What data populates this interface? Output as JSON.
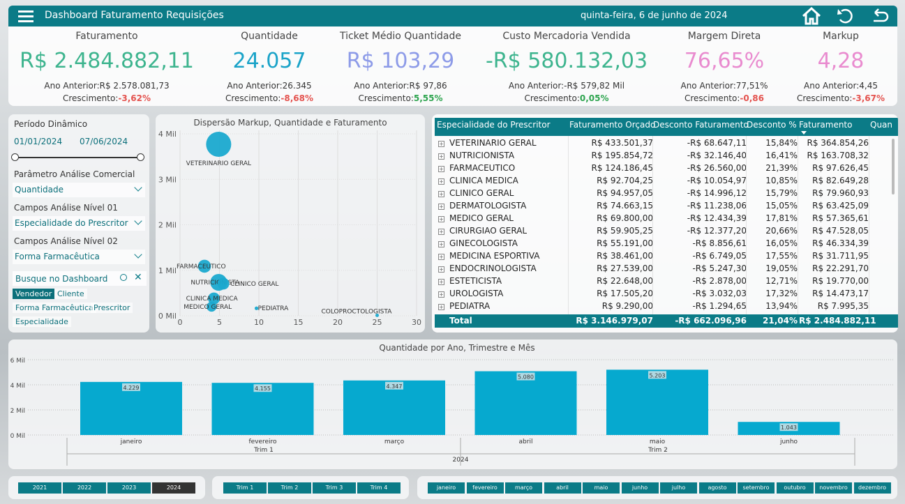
{
  "header": {
    "title": "Dashboard Faturamento Requisições",
    "date": "quinta-feira, 6 de junho de 2024"
  },
  "kpi_labels": {
    "previous": "Ano Anterior:",
    "growth": "Crescimento:"
  },
  "kpis": [
    {
      "label": "Faturamento",
      "value": "R$ 2.484.882,11",
      "previous": "R$ 2.578.081,73",
      "growth": "-3,62%",
      "value_color": "#3db48e",
      "growth_color": "#e4534f"
    },
    {
      "label": "Quantidade",
      "value": "24.057",
      "previous": "26.345",
      "growth": "-8,68%",
      "value_color": "#1aa3c8",
      "growth_color": "#e4534f"
    },
    {
      "label": "Ticket Médio Quantidade",
      "value": "R$ 103,29",
      "previous": "R$ 97,86",
      "growth": "5,55%",
      "value_color": "#8d9be8",
      "growth_color": "#2ea44f"
    },
    {
      "label": "Custo Mercadoria Vendida",
      "value": "-R$ 580.132,03",
      "previous": "-R$ 579,82 Mil",
      "growth": "0,05%",
      "value_color": "#3db48e",
      "growth_color": "#2ea44f"
    },
    {
      "label": "Margem Direta",
      "value": "76,65%",
      "previous": "77,51%",
      "growth": "-0,86",
      "value_color": "#e98bcf",
      "growth_color": "#e4534f"
    },
    {
      "label": "Markup",
      "value": "4,28",
      "previous": "4,45",
      "growth": "-3,67%",
      "value_color": "#e98bcf",
      "growth_color": "#e4534f"
    }
  ],
  "filters": {
    "period_title": "Período Dinâmico",
    "start": "01/01/2024",
    "end": "07/06/2024",
    "dropdowns": [
      {
        "label": "Parâmetro Análise Comercial",
        "value": "Quantidade"
      },
      {
        "label": "Campos Análise Nível 01",
        "value": "Especialidade do Prescritor"
      },
      {
        "label": "Campos Análise Nível 02",
        "value": "Forma Farmacêutica"
      }
    ],
    "search": "Busque no Dashboard",
    "chips": [
      "Vendedor",
      "Cliente",
      "Forma Farmacêutica",
      "Prescritor",
      "Especialidade"
    ]
  },
  "scatter": {
    "type": "scatter",
    "title": "Dispersão Markup, Quantidade e Faturamento",
    "color": "#1aa9cf",
    "labels": [
      "VETERINARIO GERAL",
      "FARMACEUTICO",
      "NUTRICIONISTA",
      "CLINICO GERAL",
      "CLINICA MEDICA",
      "MEDICO GERAL",
      "PEDIATRA",
      "COLOPROCTOLOGISTA"
    ],
    "x": [
      4.9,
      3.1,
      4.9,
      5.5,
      4.3,
      4.0,
      9.7,
      25
    ],
    "y": [
      3770,
      1090,
      735,
      705,
      380,
      200,
      165,
      10
    ],
    "sizes": [
      364854.26,
      97626.45,
      163708.32,
      79960.93,
      82649.28,
      57365.61,
      7995.35,
      2000
    ],
    "xlim": [
      0,
      30
    ],
    "xticks": [
      0,
      5,
      10,
      15,
      20,
      25,
      30
    ],
    "ylim": [
      0,
      4000
    ],
    "yticks": [
      {
        "value": 0,
        "label": "0 Mil"
      },
      {
        "value": 1000,
        "label": "1 Mil"
      },
      {
        "value": 2000,
        "label": "2 Mil"
      },
      {
        "value": 3000,
        "label": "3 Mil"
      },
      {
        "value": 4000,
        "label": "4 Mil"
      }
    ]
  },
  "table": {
    "columns": [
      "Especialidade do Prescritor",
      "Faturamento Orçado",
      "Desconto Faturamento",
      "Desconto %",
      "Faturamento",
      "Quan"
    ],
    "rows": [
      [
        "VETERINARIO GERAL",
        "R$ 433.501,37",
        "-R$ 68.647,11",
        "15,84%",
        "R$ 364.854,26"
      ],
      [
        "NUTRICIONISTA",
        "R$ 195.854,72",
        "-R$ 32.146,40",
        "16,41%",
        "R$ 163.708,32"
      ],
      [
        "FARMACEUTICO",
        "R$ 124.186,45",
        "-R$ 26.560,00",
        "21,39%",
        "R$ 97.626,45"
      ],
      [
        "CLINICA MEDICA",
        "R$ 92.704,25",
        "-R$ 10.054,97",
        "10,85%",
        "R$ 82.649,28"
      ],
      [
        "CLINICO GERAL",
        "R$ 94.957,05",
        "-R$ 14.996,12",
        "15,79%",
        "R$ 79.960,93"
      ],
      [
        "DERMATOLOGISTA",
        "R$ 74.663,15",
        "-R$ 11.238,06",
        "15,05%",
        "R$ 63.425,09"
      ],
      [
        "MEDICO GERAL",
        "R$ 69.800,00",
        "-R$ 12.434,39",
        "17,81%",
        "R$ 57.365,61"
      ],
      [
        "CIRURGIAO GERAL",
        "R$ 59.905,25",
        "-R$ 12.377,20",
        "20,66%",
        "R$ 47.528,05"
      ],
      [
        "GINECOLOGISTA",
        "R$ 55.191,00",
        "-R$ 8.856,61",
        "16,05%",
        "R$ 46.334,39"
      ],
      [
        "MEDICINA ESPORTIVA",
        "R$ 38.461,00",
        "-R$ 6.749,05",
        "17,55%",
        "R$ 31.711,95"
      ],
      [
        "ENDOCRINOLOGISTA",
        "R$ 27.539,00",
        "-R$ 5.247,30",
        "19,05%",
        "R$ 22.291,70"
      ],
      [
        "ESTETICISTA",
        "R$ 22.648,00",
        "-R$ 2.878,00",
        "12,71%",
        "R$ 19.770,00"
      ],
      [
        "UROLOGISTA",
        "R$ 17.505,20",
        "-R$ 3.032,03",
        "17,32%",
        "R$ 14.473,17"
      ],
      [
        "PEDIATRA",
        "R$ 9.290,00",
        "-R$ 1.294,65",
        "13,94%",
        "R$ 7.995,35"
      ]
    ],
    "total": [
      "Total",
      "R$ 3.146.979,07",
      "-R$ 662.096,96",
      "21,04%",
      "R$ 2.484.882,11"
    ]
  },
  "bar": {
    "type": "bar",
    "title": "Quantidade por Ano, Trimestre e Mês",
    "color": "#06a9cf",
    "categories": [
      "janeiro",
      "fevereiro",
      "março",
      "abril",
      "maio",
      "junho"
    ],
    "values": [
      4229,
      4155,
      4347,
      5080,
      5203,
      1043
    ],
    "value_labels": [
      "4.229",
      "4.155",
      "4.347",
      "5.080",
      "5.203",
      "1.043"
    ],
    "quarters": [
      "Trim 1",
      "Trim 2"
    ],
    "year": "2024",
    "ylim": [
      0,
      6000
    ],
    "yticks": [
      {
        "value": 0,
        "label": "0 Mil"
      },
      {
        "value": 2000,
        "label": "2 Mil"
      },
      {
        "value": 4000,
        "label": "4 Mil"
      },
      {
        "value": 6000,
        "label": "6 Mil"
      }
    ],
    "grid": true
  },
  "slicers": {
    "years": [
      "2021",
      "2022",
      "2023",
      "2024"
    ],
    "selected_year": 3,
    "quarters": [
      "Trim 1",
      "Trim 2",
      "Trim 3",
      "Trim 4"
    ],
    "months": [
      "janeiro",
      "fevereiro",
      "março",
      "abril",
      "maio",
      "junho",
      "julho",
      "agosto",
      "setembro",
      "outubro",
      "novembro",
      "dezembro"
    ]
  }
}
